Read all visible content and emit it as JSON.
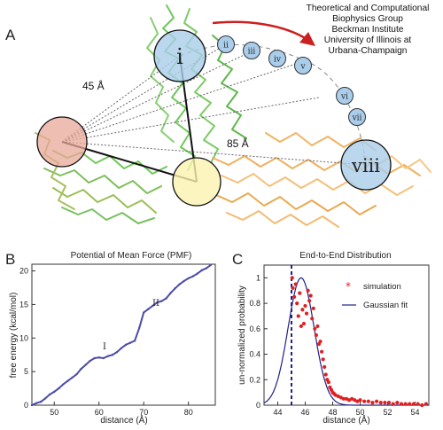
{
  "panel_a": {
    "letter": "A",
    "credit_lines": [
      "Theoretical and Computational",
      "Biophysics Group",
      "Beckman Institute",
      "University of Illinois at",
      "Urbana-Champaign"
    ],
    "distance_labels": [
      "45 Å",
      "85 Å"
    ],
    "state_labels": [
      "i",
      "ii",
      "iii",
      "iv",
      "v",
      "vi",
      "vii",
      "viii"
    ]
  },
  "panel_b": {
    "letter": "B"
  },
  "panel_c": {
    "letter": "C"
  },
  "colors": {
    "green_domain": "#6fc85a",
    "orange_domain": "#f0b060",
    "blue_circle": "#a9cdea",
    "pink_circle": "#eaa898",
    "yellow_circle": "#fbf3b0",
    "arrow": "#cc2020",
    "pmf_line": "#4b4ba8",
    "sim_points": "#e02020",
    "fit_line": "#20208a"
  },
  "chart_data": [
    {
      "type": "line",
      "title": "Potential of Mean Force (PMF)",
      "xlabel": "distance (Å)",
      "ylabel": "free energy (kcal/mol)",
      "xlim": [
        45,
        86
      ],
      "ylim": [
        0,
        21
      ],
      "xticks": [
        "50",
        "60",
        "70",
        "80"
      ],
      "yticks": [
        "0",
        "5",
        "10",
        "15",
        "20"
      ],
      "annotations": [
        "I",
        "II"
      ],
      "grid": false,
      "x": [
        45,
        46,
        47,
        48,
        49,
        50,
        51,
        52,
        53,
        54,
        55,
        56,
        57,
        58,
        59,
        60,
        61,
        62,
        63,
        64,
        65,
        66,
        67,
        68,
        69,
        70,
        71,
        72,
        73,
        74,
        75,
        76,
        77,
        78,
        79,
        80,
        81,
        82,
        83,
        84,
        85
      ],
      "series": [
        {
          "values": [
            0.0,
            0.3,
            0.5,
            1.0,
            1.6,
            2.0,
            2.5,
            3.1,
            3.6,
            4.1,
            4.6,
            5.4,
            6.0,
            6.6,
            7.0,
            7.1,
            7.0,
            7.3,
            7.5,
            7.9,
            8.5,
            9.0,
            9.3,
            9.6,
            11.5,
            13.8,
            14.3,
            14.8,
            15.3,
            15.5,
            15.9,
            16.7,
            17.4,
            18.0,
            18.5,
            18.9,
            19.2,
            19.6,
            20.1,
            20.4,
            20.9
          ]
        }
      ]
    },
    {
      "type": "scatter",
      "title": "End-to-End Distribution",
      "xlabel": "distance (Å)",
      "ylabel": "un-normalized probability",
      "xlim": [
        43,
        55
      ],
      "ylim": [
        0,
        1.1
      ],
      "xticks": [
        "44",
        "46",
        "48",
        "50",
        "52",
        "54"
      ],
      "yticks": [
        "0",
        "0.2",
        "0.4",
        "0.6",
        "0.8",
        "1"
      ],
      "legend": "top-right",
      "grid": false,
      "reference_line_x": 45,
      "series": [
        {
          "name": "simulation",
          "x": [
            45.05,
            45.1,
            45.2,
            45.3,
            45.4,
            45.5,
            45.6,
            45.7,
            45.8,
            45.9,
            46.0,
            46.1,
            46.2,
            46.3,
            46.4,
            46.5,
            46.6,
            46.7,
            46.8,
            46.9,
            47.0,
            47.1,
            47.2,
            47.3,
            47.4,
            47.5,
            47.6,
            47.7,
            47.8,
            47.9,
            48.0,
            48.1,
            48.2,
            48.4,
            48.6,
            48.8,
            49.0,
            49.2,
            49.4,
            49.6,
            49.8,
            50.0,
            50.3,
            50.6,
            50.9,
            51.2,
            51.5,
            51.8,
            52.1,
            52.4,
            52.7,
            53.0,
            53.3,
            53.6,
            53.9,
            54.2,
            54.5,
            54.8
          ],
          "y": [
            1.0,
            0.92,
            0.85,
            0.95,
            0.8,
            0.7,
            0.88,
            0.62,
            0.75,
            0.64,
            0.78,
            0.72,
            0.9,
            0.82,
            0.86,
            0.68,
            0.76,
            0.6,
            0.55,
            0.62,
            0.48,
            0.5,
            0.42,
            0.36,
            0.3,
            0.24,
            0.2,
            0.18,
            0.14,
            0.12,
            0.1,
            0.09,
            0.08,
            0.07,
            0.06,
            0.05,
            0.05,
            0.04,
            0.05,
            0.04,
            0.03,
            0.04,
            0.03,
            0.03,
            0.02,
            0.03,
            0.02,
            0.02,
            0.02,
            0.01,
            0.02,
            0.01,
            0.01,
            0.01,
            0.01,
            0.01,
            0.0,
            0.01
          ]
        },
        {
          "name": "Gaussian fit",
          "type": "line",
          "mean": 45.7,
          "sd": 0.95,
          "amplitude": 1.0
        }
      ]
    }
  ]
}
